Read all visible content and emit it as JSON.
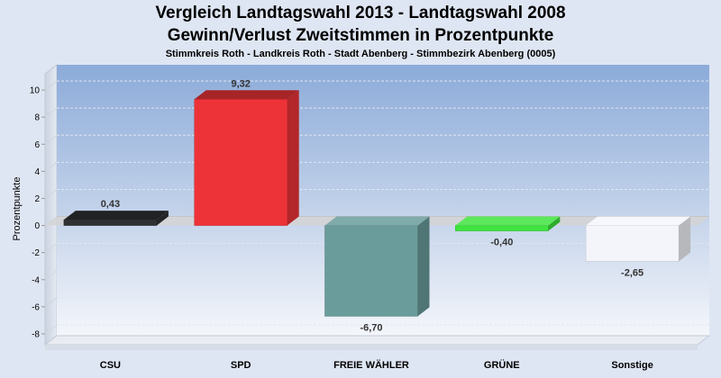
{
  "chart_data": {
    "type": "bar",
    "title": "Vergleich Landtagswahl 2013 - Landtagswahl 2008",
    "subtitle": "Gewinn/Verlust Zweitstimmen in Prozentpunkte",
    "caption": "Stimmkreis Roth - Landkreis Roth - Stadt Abenberg - Stimmbezirk Abenberg (0005)",
    "xlabel": "",
    "ylabel": "Prozentpunkte",
    "categories": [
      "CSU",
      "SPD",
      "FREIE WÄHLER",
      "GRÜNE",
      "Sonstige"
    ],
    "values": [
      0.43,
      9.32,
      -6.7,
      -0.4,
      -2.65
    ],
    "value_labels": [
      "0,43",
      "9,32",
      "-6,70",
      "-0,40",
      "-2,65"
    ],
    "colors": [
      "#2f3133",
      "#ee3338",
      "#6a9c9c",
      "#3fe33f",
      "#f3f5fb"
    ],
    "yticks": [
      10,
      8,
      6,
      4,
      2,
      0,
      -2,
      -4,
      -6,
      -8
    ],
    "ylim": [
      -8.8,
      11.2
    ],
    "grid": true,
    "legend": "none"
  }
}
